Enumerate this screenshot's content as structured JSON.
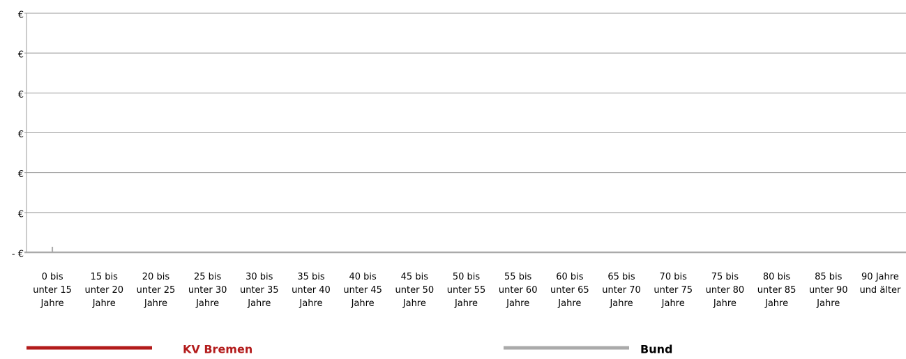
{
  "chart_data": {
    "type": "line",
    "categories": [
      [
        "0 bis",
        "unter 15",
        "Jahre"
      ],
      [
        "15 bis",
        "unter 20",
        "Jahre"
      ],
      [
        "20 bis",
        "unter 25",
        "Jahre"
      ],
      [
        "25 bis",
        "unter 30",
        "Jahre"
      ],
      [
        "30 bis",
        "unter 35",
        "Jahre"
      ],
      [
        "35 bis",
        "unter 40",
        "Jahre"
      ],
      [
        "40 bis",
        "unter 45",
        "Jahre"
      ],
      [
        "45 bis",
        "unter 50",
        "Jahre"
      ],
      [
        "50 bis",
        "unter 55",
        "Jahre"
      ],
      [
        "55 bis",
        "unter 60",
        "Jahre"
      ],
      [
        "60 bis",
        "unter 65",
        "Jahre"
      ],
      [
        "65 bis",
        "unter 70",
        "Jahre"
      ],
      [
        "70 bis",
        "unter 75",
        "Jahre"
      ],
      [
        "75 bis",
        "unter 80",
        "Jahre"
      ],
      [
        "80 bis",
        "unter 85",
        "Jahre"
      ],
      [
        "85 bis",
        "unter 90",
        "Jahre"
      ],
      [
        "90 Jahre",
        "und älter"
      ]
    ],
    "series": [
      {
        "name": "KV Bremen",
        "color": "#b31b1b",
        "values": [
          null,
          null,
          null,
          null,
          null,
          null,
          null,
          null,
          null,
          null,
          null,
          null,
          null,
          null,
          null,
          null,
          null
        ]
      },
      {
        "name": "Bund",
        "color": "#aaaaaa",
        "values": [
          0,
          null,
          null,
          null,
          null,
          null,
          null,
          null,
          null,
          null,
          null,
          null,
          null,
          null,
          null,
          null,
          null
        ]
      }
    ],
    "ylim": [
      0,
      6
    ],
    "yticks": [
      {
        "value": 0,
        "label": "- €"
      },
      {
        "value": 1,
        "label": "€"
      },
      {
        "value": 2,
        "label": "€"
      },
      {
        "value": 3,
        "label": "€"
      },
      {
        "value": 4,
        "label": "€"
      },
      {
        "value": 5,
        "label": "€"
      },
      {
        "value": 6,
        "label": "€"
      }
    ],
    "grid": true
  }
}
